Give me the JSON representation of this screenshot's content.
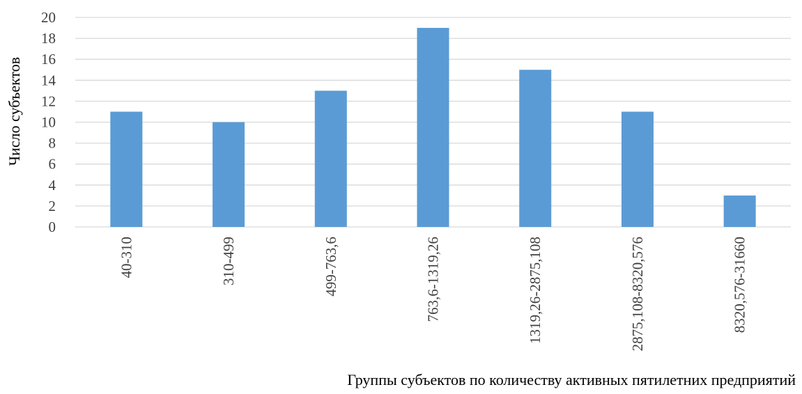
{
  "chart_data": {
    "type": "bar",
    "categories": [
      "40-310",
      "310-499",
      "499-763,6",
      "763,6-1319,26",
      "1319,26-2875,108",
      "2875,108-8320,576",
      "8320,576-31660"
    ],
    "values": [
      11,
      10,
      13,
      19,
      15,
      11,
      3
    ],
    "ylabel": "Число субъектов",
    "xlabel": "Группы субъектов по количеству активных пятилетних предприятий",
    "ylim": [
      0,
      20
    ],
    "yticks": [
      "0",
      "2",
      "4",
      "6",
      "8",
      "10",
      "12",
      "14",
      "16",
      "18",
      "20"
    ],
    "grid": true,
    "legend": "none",
    "colors": {
      "bar": "#5b9bd5",
      "grid": "#d9d9d9",
      "text": "#404040"
    }
  }
}
